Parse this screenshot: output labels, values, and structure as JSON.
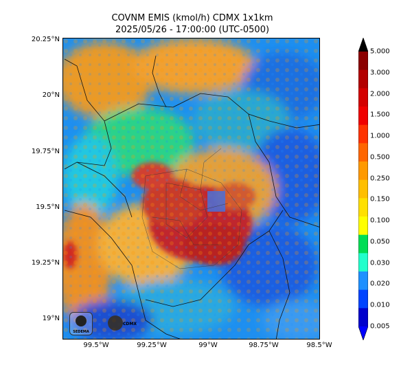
{
  "title": {
    "line1": "COVNM EMIS (kmol/h) CDMX 1x1km",
    "line2": "2025/05/26 - 17:00:00 (UTC-0500)"
  },
  "lat_ticks": [
    "20.25°N",
    "20°N",
    "19.75°N",
    "19.5°N",
    "19.25°N",
    "19°N"
  ],
  "lon_ticks": [
    "99.5°W",
    "99.25°W",
    "99°W",
    "98.75°W",
    "98.5°W"
  ],
  "colorbar": {
    "labels": [
      "5.000",
      "3.000",
      "2.000",
      "1.500",
      "1.000",
      "0.500",
      "0.250",
      "0.150",
      "0.100",
      "0.050",
      "0.030",
      "0.020",
      "0.010",
      "0.005"
    ],
    "colors": [
      "#8b0000",
      "#b30000",
      "#d40000",
      "#f00000",
      "#ff3300",
      "#ff6600",
      "#ff9900",
      "#ffbf00",
      "#ffe000",
      "#ffff00",
      "#00dd55",
      "#22ffcc",
      "#1e90ff",
      "#0044ff",
      "#0000cc"
    ]
  },
  "logos": {
    "left": "SEDEMA",
    "right": "CDMX"
  }
}
